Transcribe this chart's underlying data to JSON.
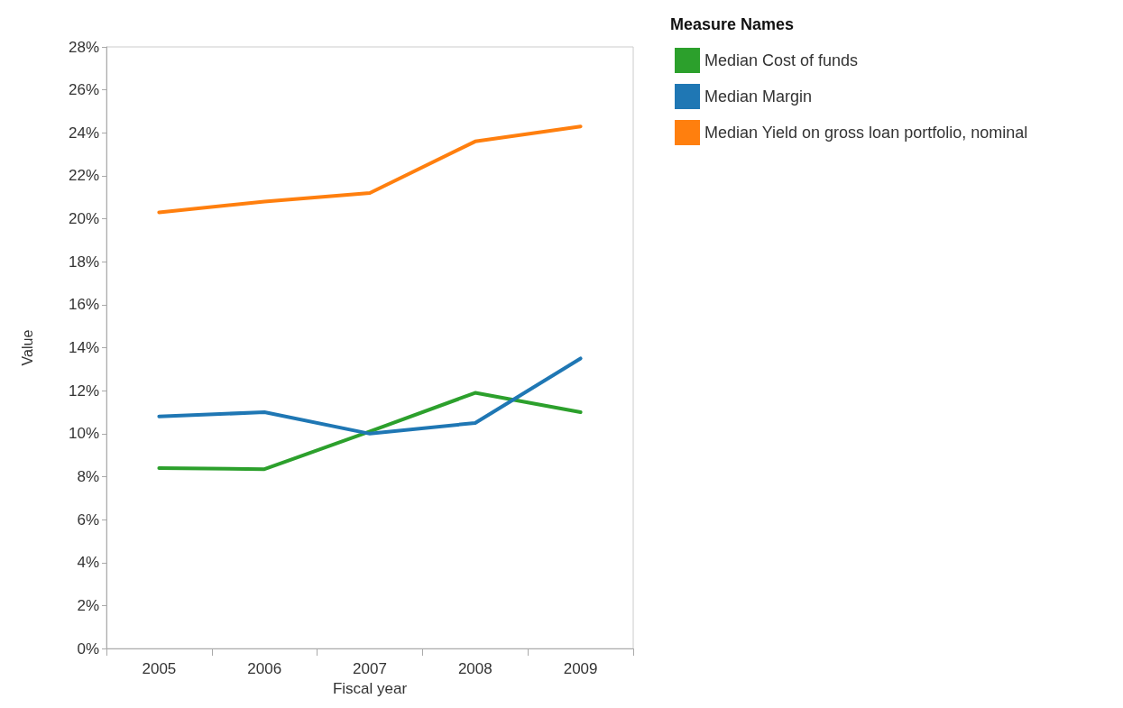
{
  "chart_data": {
    "type": "line",
    "xlabel": "Fiscal year",
    "ylabel": "Value",
    "legend_title": "Measure Names",
    "legend": "top right",
    "grid": false,
    "marker": "none",
    "line_style": "solid",
    "categories": [
      "2005",
      "2006",
      "2007",
      "2008",
      "2009"
    ],
    "ylim": [
      0,
      28
    ],
    "yticks": [
      {
        "value": 0,
        "label": "0%"
      },
      {
        "value": 2,
        "label": "2%"
      },
      {
        "value": 4,
        "label": "4%"
      },
      {
        "value": 6,
        "label": "6%"
      },
      {
        "value": 8,
        "label": "8%"
      },
      {
        "value": 10,
        "label": "10%"
      },
      {
        "value": 12,
        "label": "12%"
      },
      {
        "value": 14,
        "label": "14%"
      },
      {
        "value": 16,
        "label": "16%"
      },
      {
        "value": 18,
        "label": "18%"
      },
      {
        "value": 20,
        "label": "20%"
      },
      {
        "value": 22,
        "label": "22%"
      },
      {
        "value": 24,
        "label": "24%"
      },
      {
        "value": 26,
        "label": "26%"
      },
      {
        "value": 28,
        "label": "28%"
      }
    ],
    "series": [
      {
        "name": "Median Cost of funds",
        "color": "#2ca02c",
        "values": [
          8.4,
          8.35,
          10.1,
          11.9,
          11.0
        ]
      },
      {
        "name": "Median Margin",
        "color": "#1f77b4",
        "values": [
          10.8,
          11.0,
          10.0,
          10.5,
          13.5
        ]
      },
      {
        "name": "Median Yield on gross loan portfolio, nominal",
        "color": "#ff7f0e",
        "values": [
          20.3,
          20.8,
          21.2,
          23.6,
          24.3
        ]
      }
    ]
  }
}
